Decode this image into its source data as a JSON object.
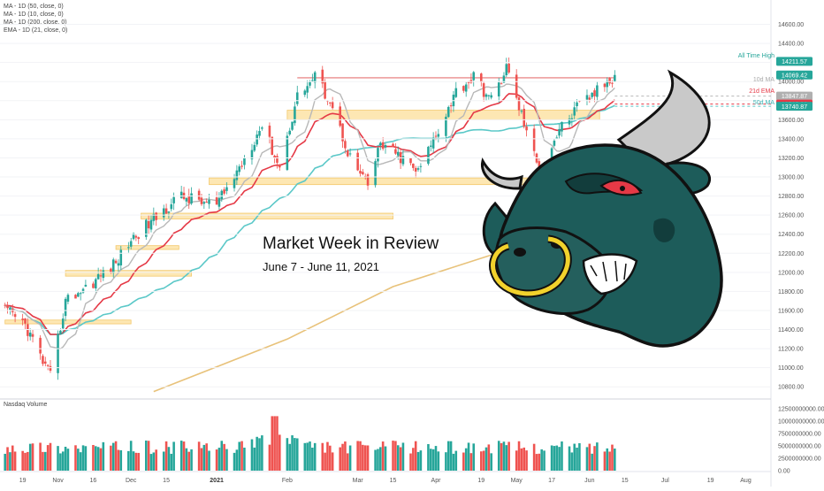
{
  "legend": {
    "lines": [
      "MA - 1D (50, close, 0)",
      "MA - 1D (10, close, 0)",
      "MA - 1D (200, close, 0)",
      "EMA - 1D (21, close, 0)"
    ]
  },
  "banner": {
    "title": "Market Week in Review",
    "subtitle": "June 7 - June 11, 2021"
  },
  "price_axis_labels": {
    "ath": "All Time High",
    "ma10": "10d MA",
    "ema21": "21d EMA",
    "ma50": "50d MA"
  },
  "price_tags": [
    {
      "value": "14211.57",
      "color": "#26a69a"
    },
    {
      "value": "14069.42",
      "color": "#26a69a"
    },
    {
      "value": "13847.87",
      "color": "#b0b0b0"
    },
    {
      "value": "13765.00",
      "color": "#e53946"
    },
    {
      "value": "13740.87",
      "color": "#26a69a"
    }
  ],
  "volume_panel": {
    "title": "Nasdaq Volume"
  },
  "colors": {
    "up": "#26a69a",
    "down": "#ef5350",
    "ma10": "#b8b8b8",
    "ema21": "#e53946",
    "ma50": "#5bc8c8",
    "ma200": "#e8c27a",
    "zone": "#fde7b3",
    "zone_border": "#f3c86b",
    "resistance": "#e57373",
    "bull_body": "#1d5c5a",
    "bull_horn": "#c9c9c9",
    "bull_ring": "#f2d22c"
  },
  "icons": {
    "bull_mascot": "bull-head-icon"
  },
  "chart_data": [
    {
      "type": "candlestick",
      "title": "",
      "x_tick_labels": [
        "19",
        "Nov",
        "16",
        "Dec",
        "15",
        "2021",
        "Feb",
        "Mar",
        "15",
        "Apr",
        "19",
        "May",
        "17",
        "Jun",
        "15",
        "Jul",
        "19",
        "Aug"
      ],
      "x_dates": [
        "2020-10-19",
        "2020-11-02",
        "2020-11-16",
        "2020-12-01",
        "2020-12-15",
        "2021-01-04",
        "2021-02-01",
        "2021-03-01",
        "2021-03-15",
        "2021-04-01",
        "2021-04-19",
        "2021-05-03",
        "2021-05-17",
        "2021-06-01",
        "2021-06-15",
        "2021-07-01",
        "2021-07-19",
        "2021-08-02"
      ],
      "y_tick_labels": [
        10800,
        11000,
        11200,
        11400,
        11600,
        11800,
        12000,
        12200,
        12400,
        12600,
        12800,
        13000,
        13200,
        13400,
        13600,
        13800,
        14000,
        14200,
        14400,
        14600
      ],
      "ylim": [
        10700,
        14800
      ],
      "anchors": [
        {
          "date": "2020-10-12",
          "close": 11600
        },
        {
          "date": "2020-10-20",
          "close": 11450
        },
        {
          "date": "2020-10-30",
          "close": 10900
        },
        {
          "date": "2020-11-05",
          "close": 11700
        },
        {
          "date": "2020-11-16",
          "close": 11900
        },
        {
          "date": "2020-11-25",
          "close": 12100
        },
        {
          "date": "2020-12-01",
          "close": 12350
        },
        {
          "date": "2020-12-10",
          "close": 12550
        },
        {
          "date": "2020-12-20",
          "close": 12800
        },
        {
          "date": "2021-01-04",
          "close": 12700
        },
        {
          "date": "2021-01-12",
          "close": 13050
        },
        {
          "date": "2021-01-22",
          "close": 13550
        },
        {
          "date": "2021-01-29",
          "close": 13100
        },
        {
          "date": "2021-02-05",
          "close": 13850
        },
        {
          "date": "2021-02-12",
          "close": 14050
        },
        {
          "date": "2021-02-18",
          "close": 13800
        },
        {
          "date": "2021-02-26",
          "close": 13200
        },
        {
          "date": "2021-03-05",
          "close": 12900
        },
        {
          "date": "2021-03-10",
          "close": 13350
        },
        {
          "date": "2021-03-18",
          "close": 13200
        },
        {
          "date": "2021-03-25",
          "close": 13050
        },
        {
          "date": "2021-04-01",
          "close": 13450
        },
        {
          "date": "2021-04-09",
          "close": 13900
        },
        {
          "date": "2021-04-16",
          "close": 14050
        },
        {
          "date": "2021-04-23",
          "close": 13800
        },
        {
          "date": "2021-04-29",
          "close": 14150
        },
        {
          "date": "2021-05-05",
          "close": 13650
        },
        {
          "date": "2021-05-12",
          "close": 13050
        },
        {
          "date": "2021-05-20",
          "close": 13500
        },
        {
          "date": "2021-05-28",
          "close": 13750
        },
        {
          "date": "2021-06-04",
          "close": 13900
        },
        {
          "date": "2021-06-11",
          "close": 14069.42
        }
      ],
      "moving_averages": [
        {
          "name": "MA - 1D (10, close, 0)",
          "role": "ma10"
        },
        {
          "name": "EMA - 1D (21, close, 0)",
          "role": "ema21"
        },
        {
          "name": "MA - 1D (50, close, 0)",
          "role": "ma50"
        },
        {
          "name": "MA - 1D (200, close, 0)",
          "role": "ma200"
        }
      ],
      "ma200_points": [
        {
          "date": "2020-12-10",
          "close": 10750
        },
        {
          "date": "2021-02-01",
          "close": 11300
        },
        {
          "date": "2021-03-15",
          "close": 11850
        },
        {
          "date": "2021-05-01",
          "close": 12250
        },
        {
          "date": "2021-06-11",
          "close": 12550
        }
      ],
      "support_zones": [
        {
          "start": "2020-10-12",
          "end": "2020-12-01",
          "low": 11460,
          "high": 11500
        },
        {
          "start": "2020-11-05",
          "end": "2020-12-25",
          "low": 11960,
          "high": 12020
        },
        {
          "start": "2020-11-25",
          "end": "2020-12-20",
          "low": 12240,
          "high": 12280
        },
        {
          "start": "2020-12-05",
          "end": "2021-03-15",
          "low": 12560,
          "high": 12620
        },
        {
          "start": "2021-01-01",
          "end": "2021-05-20",
          "low": 12920,
          "high": 12990
        },
        {
          "start": "2021-02-01",
          "end": "2021-06-05",
          "low": 13600,
          "high": 13700
        }
      ],
      "resistance_line": {
        "start": "2021-02-05",
        "end": "2021-06-11",
        "value": 14040
      },
      "reference_lines": [
        {
          "value": 13847.87,
          "role": "ma10"
        },
        {
          "value": 13765,
          "role": "ema21"
        },
        {
          "value": 13740.87,
          "role": "ma50"
        }
      ]
    },
    {
      "type": "bar",
      "title": "Nasdaq Volume",
      "y_tick_labels": [
        "12500000000.00",
        "10000000000.00",
        "7500000000.00",
        "5000000000.00",
        "2500000000.00",
        "0.00"
      ],
      "ylim": [
        0,
        12500000000
      ],
      "typical_value": 4500000000,
      "peak": {
        "date": "2021-01-27",
        "value": 11000000000
      }
    }
  ]
}
